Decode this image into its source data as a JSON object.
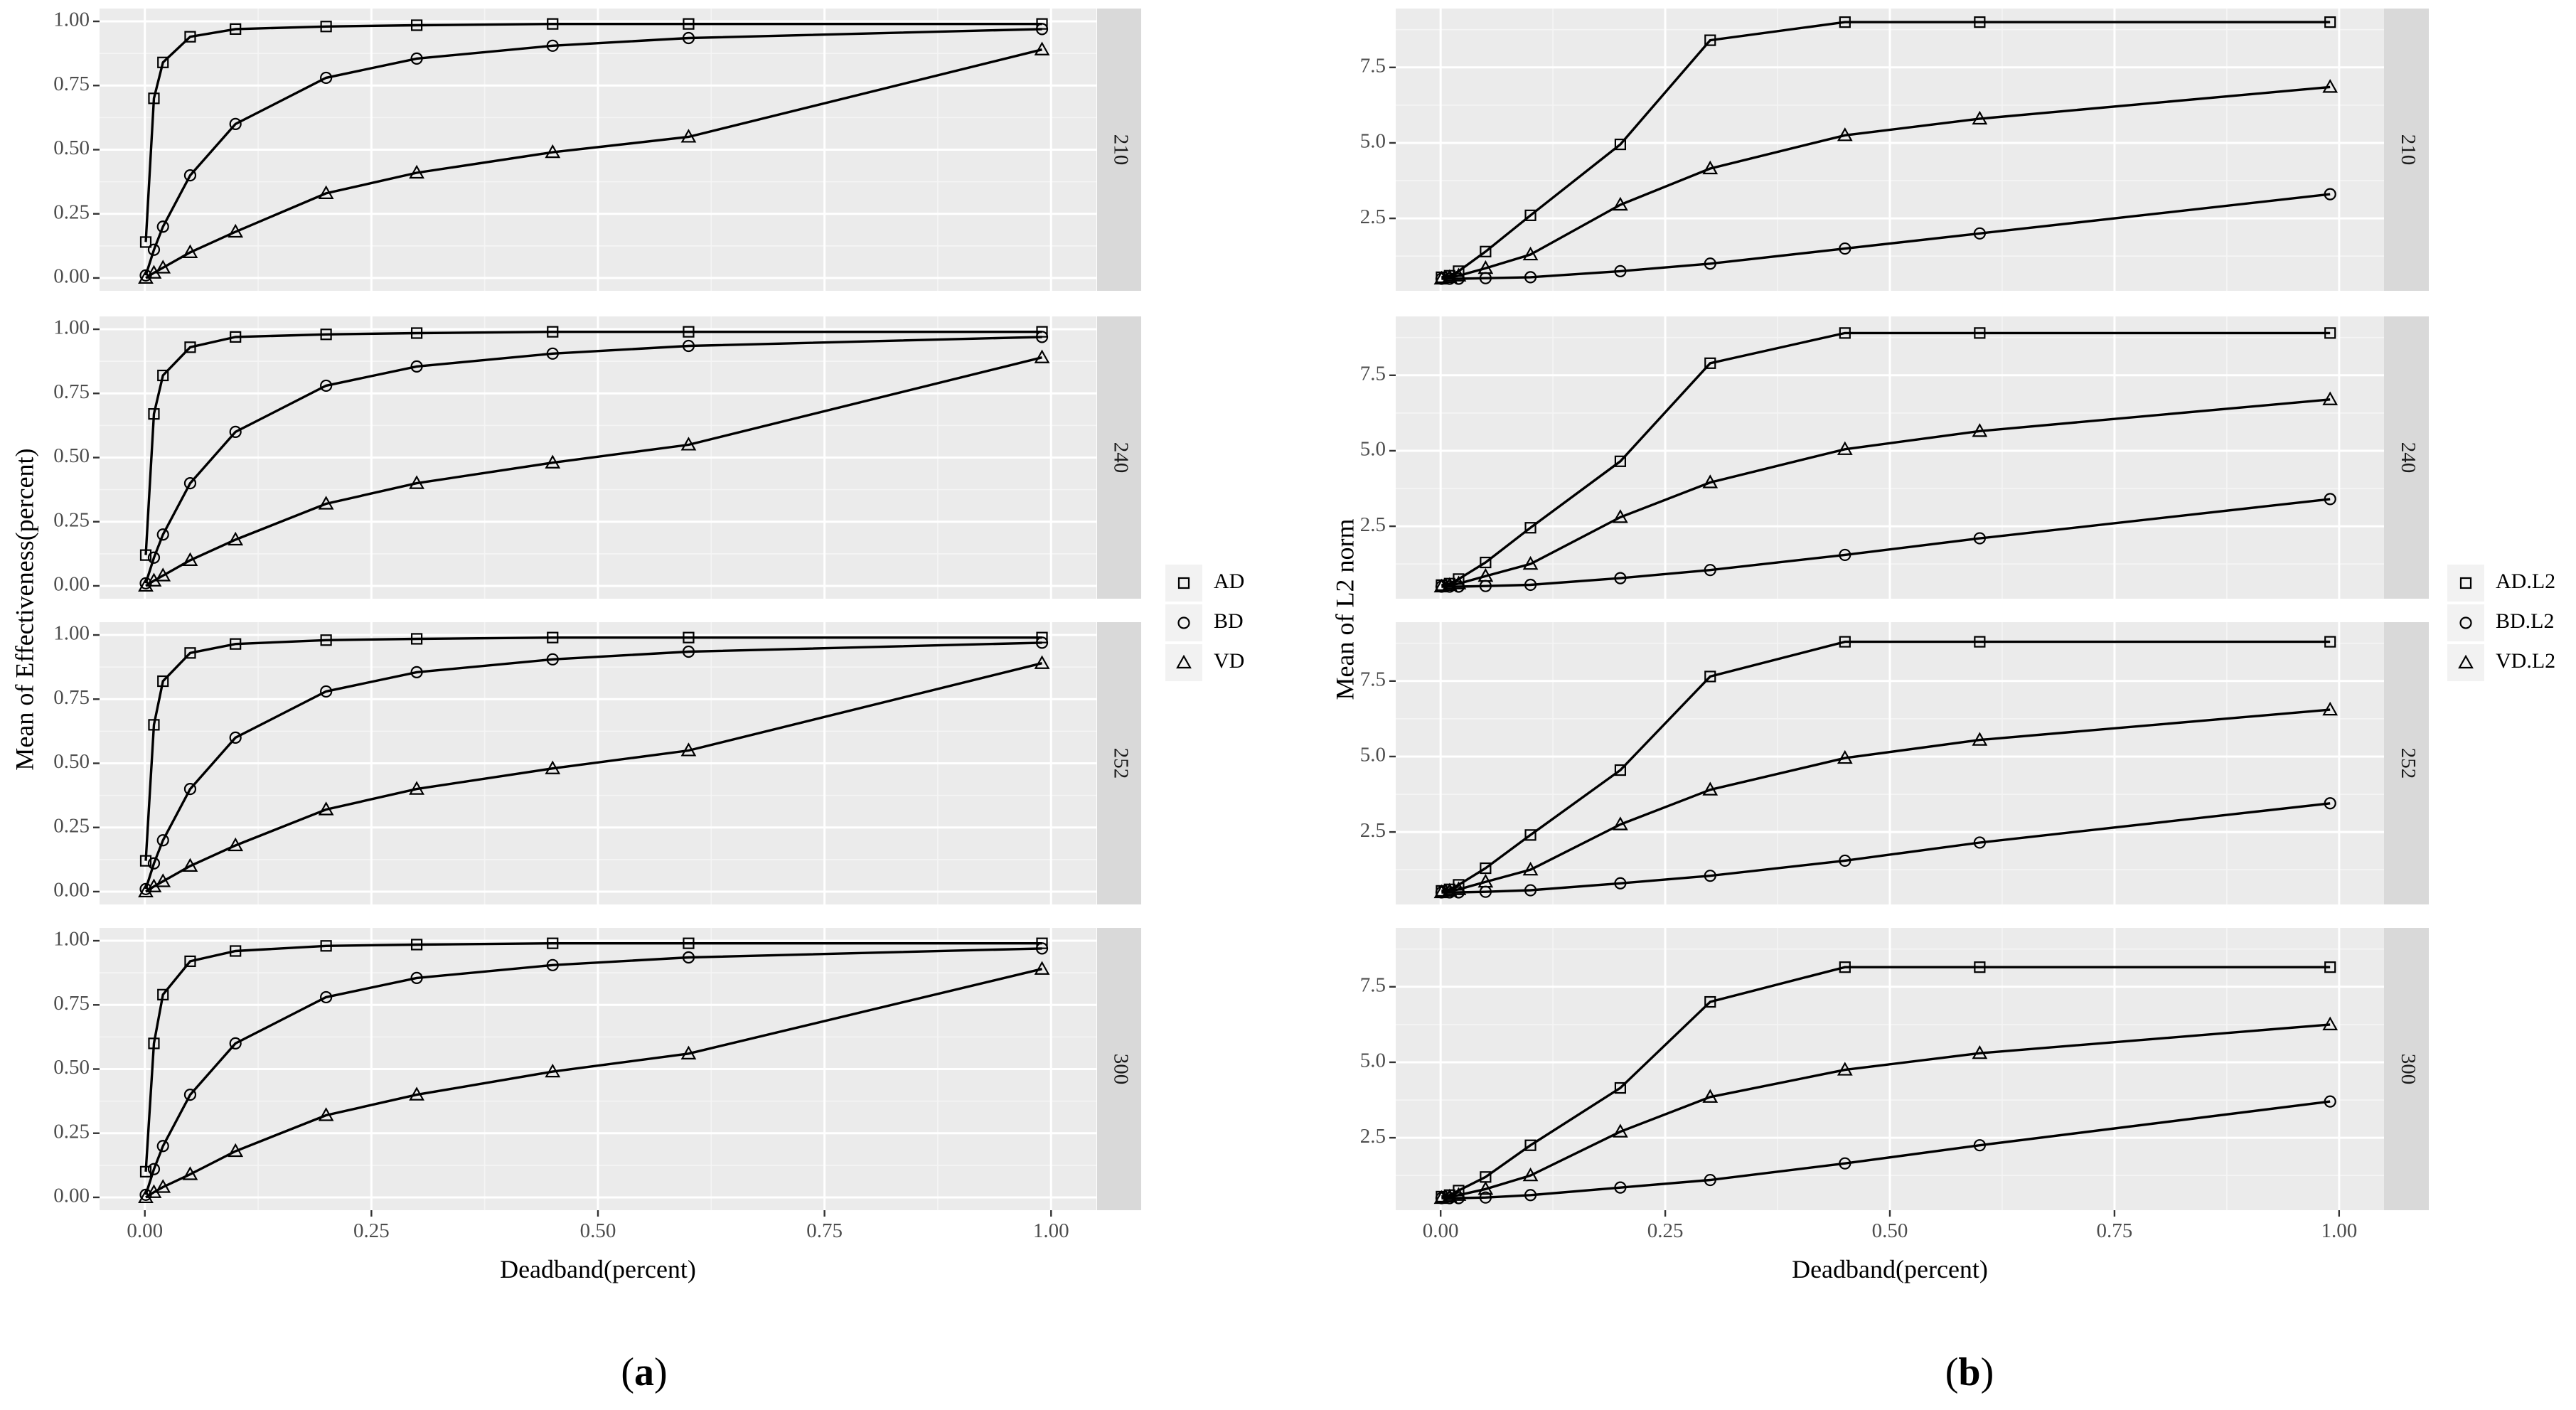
{
  "chart_data": [
    {
      "type": "line",
      "subfigure": "(a)",
      "caption_letter": "a",
      "xlabel": "Deadband(percent)",
      "ylabel": "Mean of Effectiveness(percent)",
      "x": [
        0.001,
        0.01,
        0.02,
        0.05,
        0.1,
        0.2,
        0.3,
        0.45,
        0.6,
        0.99
      ],
      "xlim": [
        -0.05,
        1.05
      ],
      "xticks": [
        "0.00",
        "0.25",
        "0.50",
        "0.75",
        "1.00"
      ],
      "ylim": [
        -0.05,
        1.05
      ],
      "yticks": [
        "0.00",
        "0.25",
        "0.50",
        "0.75",
        "1.00"
      ],
      "legend": {
        "position": "right",
        "labels": [
          "AD",
          "BD",
          "VD"
        ]
      },
      "facets": [
        {
          "strip": "210",
          "series": [
            {
              "name": "AD",
              "marker": "square",
              "values": [
                0.14,
                0.7,
                0.84,
                0.94,
                0.97,
                0.98,
                0.985,
                0.99,
                0.99,
                0.99
              ]
            },
            {
              "name": "BD",
              "marker": "circle",
              "values": [
                0.01,
                0.11,
                0.2,
                0.4,
                0.6,
                0.78,
                0.855,
                0.905,
                0.935,
                0.97
              ]
            },
            {
              "name": "VD",
              "marker": "triangle",
              "values": [
                0.0,
                0.02,
                0.04,
                0.1,
                0.18,
                0.33,
                0.41,
                0.49,
                0.55,
                0.89
              ]
            }
          ]
        },
        {
          "strip": "240",
          "series": [
            {
              "name": "AD",
              "marker": "square",
              "values": [
                0.12,
                0.67,
                0.82,
                0.93,
                0.97,
                0.98,
                0.985,
                0.99,
                0.99,
                0.99
              ]
            },
            {
              "name": "BD",
              "marker": "circle",
              "values": [
                0.01,
                0.11,
                0.2,
                0.4,
                0.6,
                0.78,
                0.855,
                0.905,
                0.935,
                0.97
              ]
            },
            {
              "name": "VD",
              "marker": "triangle",
              "values": [
                0.0,
                0.02,
                0.04,
                0.1,
                0.18,
                0.32,
                0.4,
                0.48,
                0.55,
                0.89
              ]
            }
          ]
        },
        {
          "strip": "252",
          "series": [
            {
              "name": "AD",
              "marker": "square",
              "values": [
                0.12,
                0.65,
                0.82,
                0.93,
                0.965,
                0.98,
                0.985,
                0.99,
                0.99,
                0.99
              ]
            },
            {
              "name": "BD",
              "marker": "circle",
              "values": [
                0.01,
                0.11,
                0.2,
                0.4,
                0.6,
                0.78,
                0.855,
                0.905,
                0.935,
                0.97
              ]
            },
            {
              "name": "VD",
              "marker": "triangle",
              "values": [
                0.0,
                0.02,
                0.04,
                0.1,
                0.18,
                0.32,
                0.4,
                0.48,
                0.55,
                0.89
              ]
            }
          ]
        },
        {
          "strip": "300",
          "series": [
            {
              "name": "AD",
              "marker": "square",
              "values": [
                0.1,
                0.6,
                0.79,
                0.92,
                0.96,
                0.98,
                0.985,
                0.99,
                0.99,
                0.99
              ]
            },
            {
              "name": "BD",
              "marker": "circle",
              "values": [
                0.01,
                0.11,
                0.2,
                0.4,
                0.6,
                0.78,
                0.855,
                0.905,
                0.935,
                0.97
              ]
            },
            {
              "name": "VD",
              "marker": "triangle",
              "values": [
                0.0,
                0.02,
                0.04,
                0.09,
                0.18,
                0.32,
                0.4,
                0.49,
                0.56,
                0.89
              ]
            }
          ]
        }
      ]
    },
    {
      "type": "line",
      "subfigure": "(b)",
      "caption_letter": "b",
      "xlabel": "Deadband(percent)",
      "ylabel": "Mean of L2 norm",
      "x": [
        0.001,
        0.01,
        0.02,
        0.05,
        0.1,
        0.2,
        0.3,
        0.45,
        0.6,
        0.99
      ],
      "xlim": [
        -0.05,
        1.05
      ],
      "xticks": [
        "0.00",
        "0.25",
        "0.50",
        "0.75",
        "1.00"
      ],
      "ylim": [
        0.1,
        9.45
      ],
      "yticks": [
        "2.5",
        "5.0",
        "7.5"
      ],
      "legend": {
        "position": "right",
        "labels": [
          "AD.L2",
          "BD.L2",
          "VD.L2"
        ]
      },
      "facets": [
        {
          "strip": "210",
          "series": [
            {
              "name": "AD.L2",
              "marker": "square",
              "values": [
                0.55,
                0.6,
                0.75,
                1.4,
                2.6,
                4.95,
                8.4,
                9.0,
                9.0,
                9.0
              ]
            },
            {
              "name": "BD.L2",
              "marker": "circle",
              "values": [
                0.5,
                0.5,
                0.5,
                0.52,
                0.55,
                0.75,
                1.0,
                1.5,
                2.0,
                3.3
              ]
            },
            {
              "name": "VD.L2",
              "marker": "triangle",
              "values": [
                0.5,
                0.55,
                0.6,
                0.85,
                1.3,
                2.95,
                4.15,
                5.25,
                5.8,
                6.85
              ]
            }
          ]
        },
        {
          "strip": "240",
          "series": [
            {
              "name": "AD.L2",
              "marker": "square",
              "values": [
                0.55,
                0.6,
                0.75,
                1.3,
                2.45,
                4.65,
                7.9,
                8.9,
                8.9,
                8.9
              ]
            },
            {
              "name": "BD.L2",
              "marker": "circle",
              "values": [
                0.5,
                0.5,
                0.5,
                0.52,
                0.56,
                0.78,
                1.05,
                1.55,
                2.1,
                3.4
              ]
            },
            {
              "name": "VD.L2",
              "marker": "triangle",
              "values": [
                0.5,
                0.55,
                0.6,
                0.85,
                1.25,
                2.8,
                3.95,
                5.05,
                5.65,
                6.7
              ]
            }
          ]
        },
        {
          "strip": "252",
          "series": [
            {
              "name": "AD.L2",
              "marker": "square",
              "values": [
                0.55,
                0.6,
                0.75,
                1.3,
                2.4,
                4.55,
                7.65,
                8.8,
                8.8,
                8.8
              ]
            },
            {
              "name": "BD.L2",
              "marker": "circle",
              "values": [
                0.5,
                0.5,
                0.5,
                0.52,
                0.57,
                0.8,
                1.05,
                1.55,
                2.15,
                3.45
              ]
            },
            {
              "name": "VD.L2",
              "marker": "triangle",
              "values": [
                0.5,
                0.55,
                0.6,
                0.85,
                1.25,
                2.75,
                3.9,
                4.95,
                5.55,
                6.55
              ]
            }
          ]
        },
        {
          "strip": "300",
          "series": [
            {
              "name": "AD.L2",
              "marker": "square",
              "values": [
                0.55,
                0.6,
                0.75,
                1.2,
                2.25,
                4.15,
                7.0,
                8.15,
                8.15,
                8.15
              ]
            },
            {
              "name": "BD.L2",
              "marker": "circle",
              "values": [
                0.5,
                0.5,
                0.5,
                0.52,
                0.6,
                0.85,
                1.1,
                1.65,
                2.25,
                3.7
              ]
            },
            {
              "name": "VD.L2",
              "marker": "triangle",
              "values": [
                0.5,
                0.55,
                0.6,
                0.8,
                1.25,
                2.7,
                3.85,
                4.75,
                5.3,
                6.25
              ]
            }
          ]
        }
      ]
    }
  ]
}
